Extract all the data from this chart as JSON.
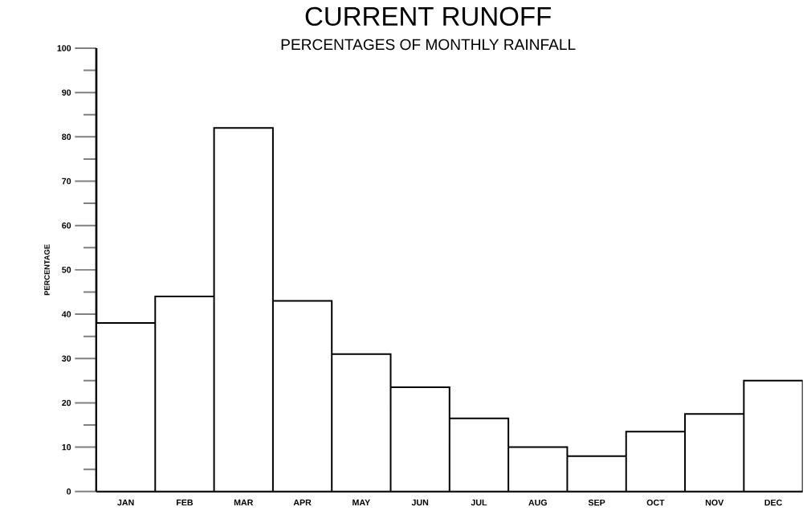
{
  "chart_data": {
    "type": "bar",
    "title": "CURRENT  RUNOFF",
    "subtitle": "PERCENTAGES  OF  MONTHLY  RAINFALL",
    "ylabel": "PERCENTAGE",
    "categories": [
      "JAN",
      "FEB",
      "MAR",
      "APR",
      "MAY",
      "JUN",
      "JUL",
      "AUG",
      "SEP",
      "OCT",
      "NOV",
      "DEC"
    ],
    "values": [
      38,
      44,
      82,
      43,
      31,
      23.5,
      16.5,
      10,
      8,
      13.5,
      17.5,
      25
    ],
    "color": "#ffffff",
    "ylim": [
      0,
      100
    ],
    "yticks": [
      0,
      10,
      20,
      30,
      40,
      50,
      60,
      70,
      80,
      90,
      100
    ]
  }
}
